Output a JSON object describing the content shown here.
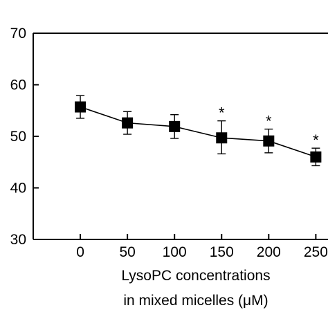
{
  "chart_data": {
    "type": "line",
    "xlabel_lines": [
      "LysoPC concentrations",
      "in mixed micelles (μM)"
    ],
    "ylabel": "",
    "x": [
      0,
      50,
      100,
      150,
      200,
      250
    ],
    "x_tick_labels": [
      "0",
      "50",
      "100",
      "150",
      "200",
      "250"
    ],
    "xlim": [
      -50,
      260
    ],
    "ylim": [
      30,
      70
    ],
    "y_ticks": [
      30,
      40,
      50,
      60,
      70
    ],
    "y_tick_labels": [
      "30",
      "40",
      "50",
      "60",
      "70"
    ],
    "series": [
      {
        "values": [
          55.7,
          52.6,
          51.9,
          49.7,
          49.1,
          46.0
        ],
        "error_upper": [
          2.2,
          2.2,
          2.3,
          3.3,
          2.3,
          1.7
        ],
        "error_lower": [
          2.2,
          2.2,
          2.3,
          3.1,
          2.3,
          1.7
        ],
        "marker": "square",
        "color": "#000000"
      }
    ],
    "significance_label": "*",
    "significance_at_x": [
      150,
      200,
      250
    ],
    "grid": false
  }
}
